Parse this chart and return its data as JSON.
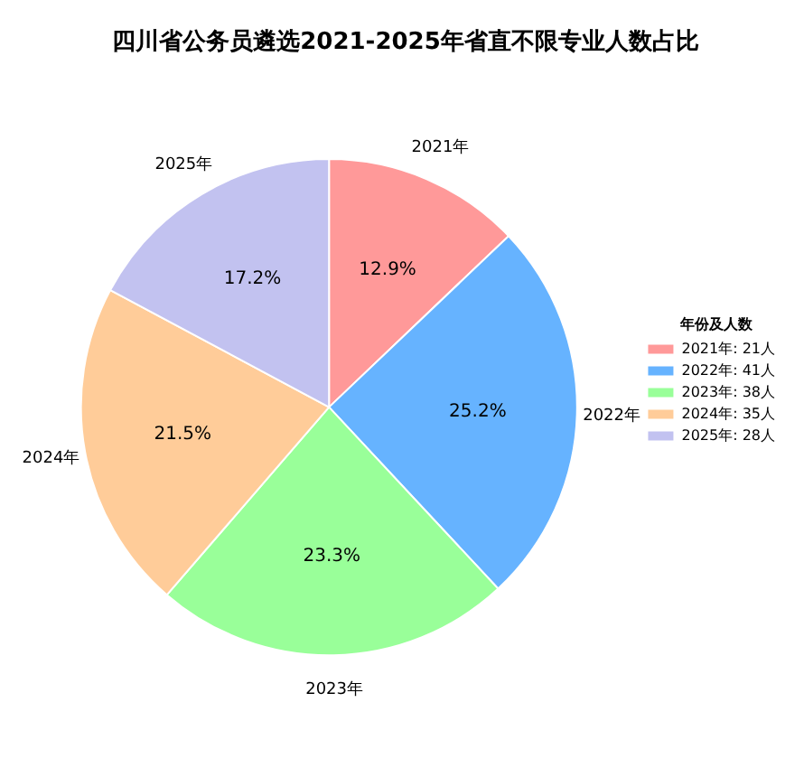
{
  "chart_data": {
    "type": "pie",
    "title": "四川省公务员遴选2021-2025年省直不限专业人数占比",
    "categories": [
      "2021年: 21人",
      "2022年: 41人",
      "2023年: 38人",
      "2024年: 35人",
      "2025年: 28人"
    ],
    "values": [
      12.9,
      25.2,
      23.3,
      21.5,
      17.2
    ],
    "colors": [
      "#ff9999",
      "#66b3ff",
      "#99ff99",
      "#ffcc99",
      "#c2c2f0"
    ],
    "value_labels": [
      "12.9%",
      "25.2%",
      "23.3%",
      "21.5%",
      "17.2%"
    ],
    "legend": "right",
    "legend_title": "年份及人数",
    "annotations": [
      {
        "text": "2021年",
        "x": "2021年: 21人"
      },
      {
        "text": "2022年",
        "x": "2022年: 41人"
      },
      {
        "text": "2023年",
        "x": "2023年: 38人"
      },
      {
        "text": "2024年",
        "x": "2024年: 35人"
      },
      {
        "text": "2025年",
        "x": "2025年: 28人"
      }
    ]
  }
}
